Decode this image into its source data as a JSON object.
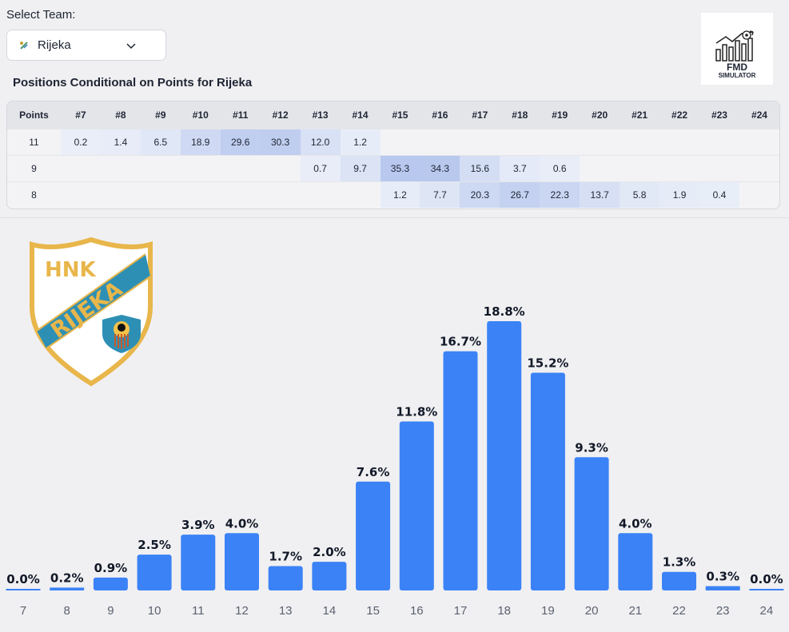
{
  "selector": {
    "label": "Select Team:",
    "value": "Rijeka"
  },
  "brand": {
    "line1": "FMD",
    "line2": "SIMULATOR"
  },
  "crest": {
    "top": "HNK",
    "band": "RIJEKA"
  },
  "table": {
    "title": "Positions Conditional on Points for Rijeka",
    "headers": [
      "Points",
      "#7",
      "#8",
      "#9",
      "#10",
      "#11",
      "#12",
      "#13",
      "#14",
      "#15",
      "#16",
      "#17",
      "#18",
      "#19",
      "#20",
      "#21",
      "#22",
      "#23",
      "#24"
    ],
    "rows": [
      {
        "points": "11",
        "cells": [
          "0.2",
          "1.4",
          "6.5",
          "18.9",
          "29.6",
          "30.3",
          "12.0",
          "1.2",
          "",
          "",
          "",
          "",
          "",
          "",
          "",
          "",
          "",
          ""
        ]
      },
      {
        "points": "9",
        "cells": [
          "",
          "",
          "",
          "",
          "",
          "",
          "0.7",
          "9.7",
          "35.3",
          "34.3",
          "15.6",
          "3.7",
          "0.6",
          "",
          "",
          "",
          "",
          ""
        ]
      },
      {
        "points": "8",
        "cells": [
          "",
          "",
          "",
          "",
          "",
          "",
          "",
          "",
          "1.2",
          "7.7",
          "20.3",
          "26.7",
          "22.3",
          "13.7",
          "5.8",
          "1.9",
          "0.4",
          ""
        ]
      }
    ]
  },
  "colors": {
    "bar": "#3b82f6",
    "cell_dark": "#b8c8ee",
    "cell_light": "#e9eef8"
  },
  "chart_data": {
    "type": "bar",
    "categories": [
      "7",
      "8",
      "9",
      "10",
      "11",
      "12",
      "13",
      "14",
      "15",
      "16",
      "17",
      "18",
      "19",
      "20",
      "21",
      "22",
      "23",
      "24"
    ],
    "values": [
      0.0,
      0.2,
      0.9,
      2.5,
      3.9,
      4.0,
      1.7,
      2.0,
      7.6,
      11.8,
      16.7,
      18.8,
      15.2,
      9.3,
      4.0,
      1.3,
      0.3,
      0.0
    ],
    "value_labels": [
      "0.0%",
      "0.2%",
      "0.9%",
      "2.5%",
      "3.9%",
      "4.0%",
      "1.7%",
      "2.0%",
      "7.6%",
      "11.8%",
      "16.7%",
      "18.8%",
      "15.2%",
      "9.3%",
      "4.0%",
      "1.3%",
      "0.3%",
      "0.0%"
    ],
    "ylim": [
      0,
      18.8
    ],
    "grid": false
  }
}
